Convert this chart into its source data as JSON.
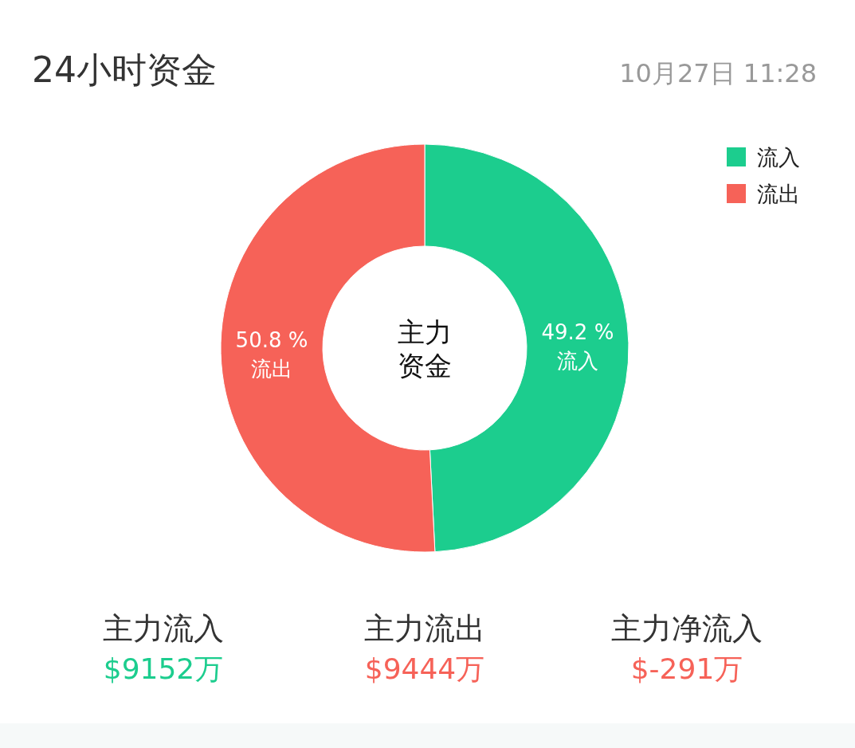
{
  "chart_data": {
    "type": "donut",
    "title": "24小时资金",
    "subtitle": "10月27日 11:28",
    "categories": [
      "流入",
      "流出"
    ],
    "values": [
      49.2,
      50.8
    ],
    "colors": [
      "#1ccd8e",
      "#f66258"
    ],
    "value_labels": [
      "49.2 %",
      "50.8 %"
    ],
    "legend": "top right",
    "annotations": [
      "主力资金",
      "主力流入",
      "$9152万",
      "主力流出",
      "$9444万",
      "主力净流入",
      "$-291万"
    ]
  }
}
